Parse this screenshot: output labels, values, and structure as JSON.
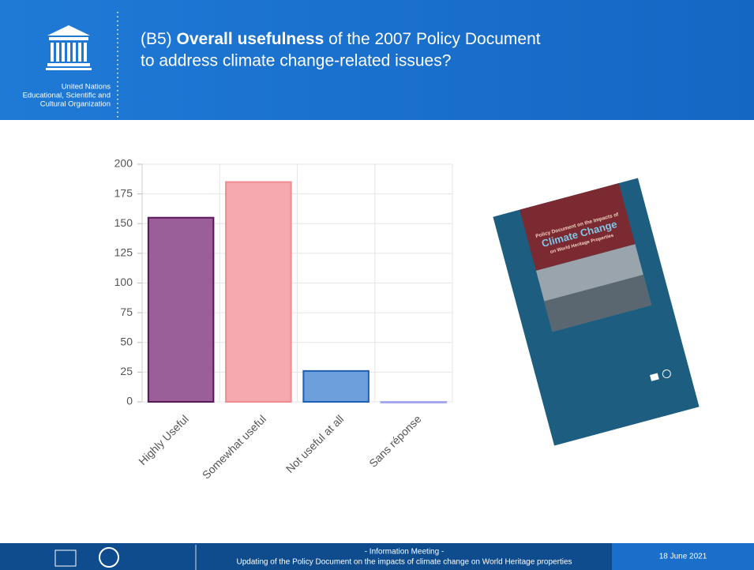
{
  "header": {
    "org_lines": [
      "United Nations",
      "Educational, Scientific and",
      "Cultural Organization"
    ],
    "title_parts": [
      "(B5) ",
      "Overall usefulness",
      " of the 2007 Policy Document"
    ],
    "title_line2": "to address climate change-related issues?"
  },
  "chart_data": {
    "type": "bar",
    "categories": [
      "Highly Useful",
      "Somewhat useful",
      "Not useful at all",
      "Sans réponse"
    ],
    "values": [
      155,
      185,
      26,
      0
    ],
    "colors": [
      "#9a5e98",
      "#f6a9ae",
      "#6c9fdc",
      "#c8c8f4"
    ],
    "edge_colors": [
      "#5a1458",
      "#ee8a90",
      "#1f5fb4",
      "#a8a8f0"
    ],
    "ylim": [
      0,
      200
    ],
    "yticks": [
      0,
      25,
      50,
      75,
      100,
      125,
      150,
      175,
      200
    ],
    "grid": true
  },
  "cover": {
    "lines": [
      "Policy Document on the Impacts of",
      "Climate Change",
      "on World Heritage Properties"
    ]
  },
  "footer": {
    "meeting": "- Information Meeting -",
    "subtitle": "Updating of the Policy Document on the impacts of climate change on World Heritage properties",
    "date": "18 June 2021"
  }
}
